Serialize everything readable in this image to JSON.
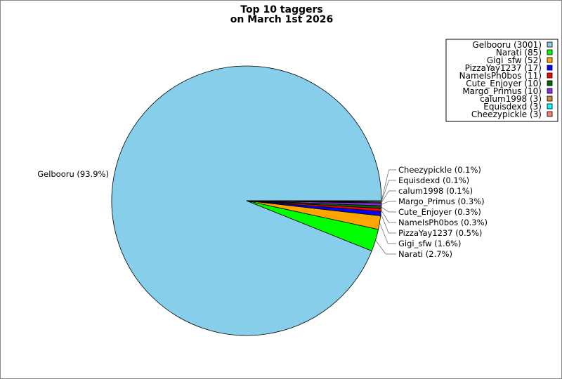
{
  "chart_data": {
    "type": "pie",
    "title_lines": [
      "Top 10 taggers",
      "on March 1st 2026"
    ],
    "start_angle_deg": 0,
    "direction": "counterclockwise",
    "legend_placement": "top-right",
    "slices": [
      {
        "label": "Gelbooru",
        "value": 3001,
        "percent_label": "Gelbooru (93.9%)",
        "legend_label": "Gelbooru (3001)",
        "color": "#87CEEB"
      },
      {
        "label": "Narati",
        "value": 85,
        "percent_label": "Narati (2.7%)",
        "legend_label": "Narati (85)",
        "color": "#00FF00"
      },
      {
        "label": "Gigi_sfw",
        "value": 52,
        "percent_label": "Gigi_sfw (1.6%)",
        "legend_label": "Gigi_sfw (52)",
        "color": "#FFA500"
      },
      {
        "label": "PizzaYay1237",
        "value": 17,
        "percent_label": "PizzaYay1237 (0.5%)",
        "legend_label": "PizzaYay1237 (17)",
        "color": "#0000FF"
      },
      {
        "label": "NameIsPh0bos",
        "value": 11,
        "percent_label": "NameIsPh0bos (0.3%)",
        "legend_label": "NameIsPh0bos (11)",
        "color": "#FF0000"
      },
      {
        "label": "Cute_Enjoyer",
        "value": 10,
        "percent_label": "Cute_Enjoyer (0.3%)",
        "legend_label": "Cute_Enjoyer (10)",
        "color": "#006400"
      },
      {
        "label": "Margo_Primus",
        "value": 10,
        "percent_label": "Margo_Primus (0.3%)",
        "legend_label": "Margo_Primus (10)",
        "color": "#8A2BE2"
      },
      {
        "label": "calum1998",
        "value": 3,
        "percent_label": "calum1998 (0.1%)",
        "legend_label": "calum1998 (3)",
        "color": "#CD853F"
      },
      {
        "label": "Equisdexd",
        "value": 3,
        "percent_label": "Equisdexd (0.1%)",
        "legend_label": "Equisdexd (3)",
        "color": "#00FFFF"
      },
      {
        "label": "Cheezypickle",
        "value": 3,
        "percent_label": "Cheezypickle (0.1%)",
        "legend_label": "Cheezypickle (3)",
        "color": "#FA8072"
      }
    ]
  }
}
